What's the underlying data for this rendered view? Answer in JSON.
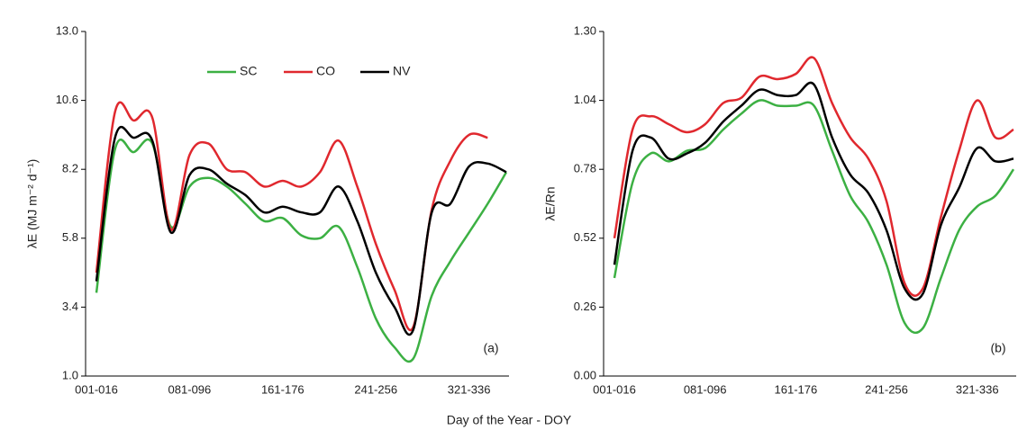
{
  "chart_data": [
    {
      "type": "line",
      "ylabel": "λE (MJ m⁻² d⁻¹)",
      "panel_label": "(a)",
      "xlabel": "Day of the Year - DOY",
      "categories": [
        "001-016",
        null,
        null,
        null,
        null,
        "081-096",
        null,
        null,
        null,
        null,
        "161-176",
        null,
        null,
        null,
        null,
        "241-256",
        null,
        null,
        null,
        null,
        "321-336",
        null,
        null
      ],
      "ylim": [
        1,
        13
      ],
      "yticks": [
        {
          "value": 1,
          "label": "1.0"
        },
        3.4,
        5.8,
        8.2,
        10.6,
        {
          "value": 13,
          "label": "13.0"
        }
      ],
      "legend": "top",
      "series": [
        {
          "name": "SC",
          "color": "#3cb043",
          "values": [
            3.9,
            8.9,
            8.8,
            9.1,
            6.2,
            7.6,
            7.9,
            7.6,
            7.0,
            6.4,
            6.5,
            5.9,
            5.8,
            6.2,
            4.8,
            3.0,
            2.0,
            1.6,
            3.8,
            5.0,
            6.0,
            7.0,
            8.1
          ]
        },
        {
          "name": "CO",
          "color": "#e0282e",
          "values": [
            4.6,
            10.2,
            9.9,
            10.0,
            6.1,
            8.7,
            9.1,
            8.2,
            8.1,
            7.6,
            7.8,
            7.6,
            8.1,
            9.2,
            7.6,
            5.6,
            4.0,
            2.7,
            6.8,
            8.5,
            9.4,
            9.3,
            null
          ]
        },
        {
          "name": "NV",
          "color": "#000000",
          "values": [
            4.3,
            9.3,
            9.3,
            9.2,
            6.0,
            8.0,
            8.2,
            7.7,
            7.3,
            6.7,
            6.9,
            6.7,
            6.7,
            7.6,
            6.4,
            4.6,
            3.4,
            2.6,
            6.7,
            7.0,
            8.3,
            8.4,
            8.1
          ]
        }
      ]
    },
    {
      "type": "line",
      "ylabel": "λE/Rn",
      "panel_label": "(b)",
      "categories": [
        "001-016",
        null,
        null,
        null,
        null,
        "081-096",
        null,
        null,
        null,
        null,
        "161-176",
        null,
        null,
        null,
        null,
        "241-256",
        null,
        null,
        null,
        null,
        "321-336",
        null,
        null
      ],
      "ylim": [
        0,
        1.3
      ],
      "yticks": [
        {
          "value": 0,
          "label": "0.00"
        },
        0.26,
        0.52,
        0.78,
        1.04,
        {
          "value": 1.3,
          "label": "1.30"
        }
      ],
      "series": [
        {
          "color": "#3cb043",
          "values": [
            0.37,
            0.73,
            0.84,
            0.81,
            0.85,
            0.86,
            0.93,
            0.99,
            1.04,
            1.02,
            1.02,
            1.02,
            0.85,
            0.68,
            0.58,
            0.42,
            0.2,
            0.18,
            0.37,
            0.55,
            0.64,
            0.68,
            0.78
          ]
        },
        {
          "color": "#e0282e",
          "values": [
            0.52,
            0.93,
            0.98,
            0.95,
            0.92,
            0.95,
            1.03,
            1.05,
            1.13,
            1.12,
            1.14,
            1.2,
            1.03,
            0.9,
            0.82,
            0.66,
            0.35,
            0.33,
            0.6,
            0.85,
            1.04,
            0.9,
            0.93
          ]
        },
        {
          "color": "#000000",
          "values": [
            0.42,
            0.85,
            0.9,
            0.82,
            0.84,
            0.88,
            0.96,
            1.02,
            1.08,
            1.06,
            1.06,
            1.1,
            0.9,
            0.76,
            0.69,
            0.55,
            0.33,
            0.31,
            0.57,
            0.71,
            0.86,
            0.81,
            0.82
          ]
        }
      ]
    }
  ]
}
